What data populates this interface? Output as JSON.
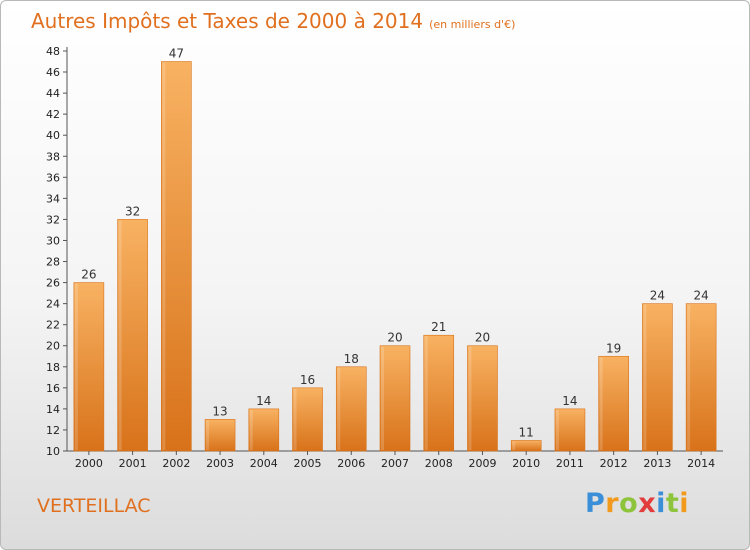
{
  "chart_data": {
    "type": "bar",
    "title": "Autres Impôts et Taxes de 2000 à 2014",
    "subtitle": "(en milliers d'€)",
    "categories": [
      "2000",
      "2001",
      "2002",
      "2003",
      "2004",
      "2005",
      "2006",
      "2007",
      "2008",
      "2009",
      "2010",
      "2011",
      "2012",
      "2013",
      "2014"
    ],
    "values": [
      26,
      32,
      47,
      13,
      14,
      16,
      18,
      20,
      21,
      20,
      11,
      14,
      19,
      24,
      24
    ],
    "ylim": [
      10,
      48
    ],
    "yticks": [
      10,
      12,
      14,
      16,
      18,
      20,
      22,
      24,
      26,
      28,
      30,
      32,
      34,
      36,
      38,
      40,
      42,
      44,
      46,
      48
    ],
    "grid": false,
    "colors": {
      "bar": "#f0953a",
      "bar_light": "#f8b262",
      "bar_dark": "#d8721a",
      "accent": "#e0701f"
    }
  },
  "commune": "VERTEILLAC",
  "logo": {
    "letters": [
      "P",
      "r",
      "o",
      "x",
      "i",
      "t",
      "i"
    ],
    "colors": [
      "#3b8fd8",
      "#f29a1c",
      "#8dc43c",
      "#e23c3c",
      "#3b8fd8",
      "#8dc43c",
      "#f29a1c"
    ]
  }
}
